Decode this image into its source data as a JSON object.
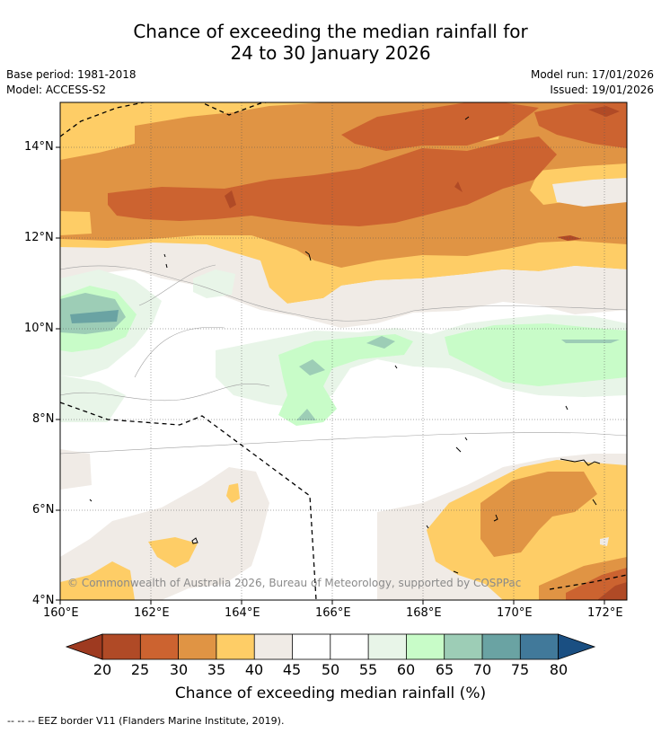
{
  "title": {
    "line1": "Chance of exceeding the median rainfall for",
    "line2": "24 to 30 January 2026"
  },
  "meta": {
    "base_period": "Base period: 1981-2018",
    "model": "Model: ACCESS-S2",
    "model_run": "Model run: 17/01/2026",
    "issued": "Issued: 19/01/2026"
  },
  "axes": {
    "lat_labels": [
      "14°N",
      "12°N",
      "10°N",
      "8°N",
      "6°N",
      "4°N"
    ],
    "lon_labels": [
      "160°E",
      "162°E",
      "164°E",
      "166°E",
      "168°E",
      "170°E",
      "172°E"
    ],
    "lat_range": [
      4,
      15
    ],
    "lon_range": [
      160,
      172.5
    ]
  },
  "copyright": "© Commonwealth of Australia 2026, Bureau of Meteorology, supported by COSPPac",
  "colorbar": {
    "title": "Chance of exceeding median rainfall (%)",
    "labels": [
      "20",
      "25",
      "30",
      "35",
      "40",
      "45",
      "50",
      "55",
      "60",
      "65",
      "70",
      "75",
      "80"
    ],
    "colors": {
      "below20": "#9e3a20",
      "b20_25": "#b04a26",
      "b25_30": "#cc6330",
      "b30_35": "#e09444",
      "b35_40": "#fecd66",
      "b40_45": "#f0ebe6",
      "b45_50": "#ffffff",
      "b50_55": "#ffffff",
      "b55_60": "#e8f5e8",
      "b60_65": "#c8fcc8",
      "b65_70": "#9dcdb6",
      "b70_75": "#6aa3a3",
      "b75_80": "#41799a",
      "above80": "#1a4f82"
    }
  },
  "footnote": "-- -- -- EEZ border V11 (Flanders Marine Institute, 2019)."
}
